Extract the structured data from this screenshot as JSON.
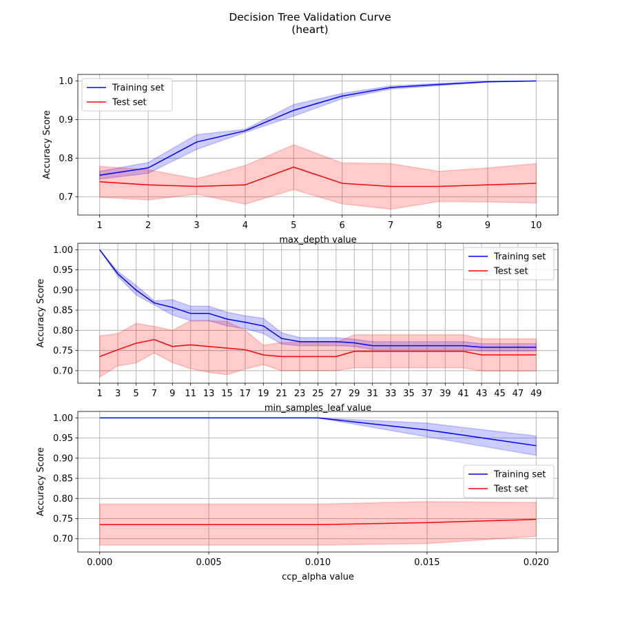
{
  "figure": {
    "title_line1": "Decision Tree Validation Curve",
    "title_line2": "(heart)"
  },
  "colors": {
    "train": "#0000ff",
    "test": "#ff0000",
    "train_band": "#0000ff",
    "test_band": "#ff0000",
    "grid": "#b0b0b0"
  },
  "chart_data": [
    {
      "type": "line",
      "xlabel": "max_depth value",
      "ylabel": "Accuracy Score",
      "x": [
        1,
        2,
        3,
        4,
        5,
        6,
        7,
        8,
        9,
        10
      ],
      "xticks": [
        1,
        2,
        3,
        4,
        5,
        6,
        7,
        8,
        9,
        10
      ],
      "xtick_labels": [
        "1",
        "2",
        "3",
        "4",
        "5",
        "6",
        "7",
        "8",
        "9",
        "10"
      ],
      "xlim": [
        0.55,
        10.45
      ],
      "yticks": [
        0.7,
        0.8,
        0.9,
        1.0
      ],
      "ytick_labels": [
        "0.7",
        "0.8",
        "0.9",
        "1.0"
      ],
      "ylim": [
        0.653,
        1.017
      ],
      "grid": true,
      "legend_placement": "upper-left",
      "series": [
        {
          "name": "Training set",
          "color_key": "train",
          "values": [
            0.756,
            0.775,
            0.842,
            0.871,
            0.924,
            0.961,
            0.983,
            0.991,
            0.998,
            1.0
          ],
          "upper": [
            0.766,
            0.789,
            0.861,
            0.875,
            0.939,
            0.968,
            0.987,
            0.994,
            0.999,
            1.0
          ],
          "lower": [
            0.746,
            0.761,
            0.823,
            0.867,
            0.909,
            0.954,
            0.979,
            0.988,
            0.997,
            1.0
          ]
        },
        {
          "name": "Test set",
          "color_key": "test",
          "values": [
            0.739,
            0.731,
            0.727,
            0.731,
            0.777,
            0.735,
            0.727,
            0.727,
            0.731,
            0.735
          ],
          "upper": [
            0.779,
            0.77,
            0.747,
            0.781,
            0.835,
            0.788,
            0.786,
            0.766,
            0.775,
            0.786
          ],
          "lower": [
            0.699,
            0.692,
            0.707,
            0.681,
            0.719,
            0.682,
            0.668,
            0.688,
            0.687,
            0.684
          ]
        }
      ]
    },
    {
      "type": "line",
      "xlabel": "min_samples_leaf value",
      "ylabel": "Accuracy Score",
      "x": [
        1,
        3,
        5,
        7,
        9,
        11,
        13,
        15,
        17,
        19,
        21,
        23,
        25,
        27,
        29,
        31,
        33,
        35,
        37,
        39,
        41,
        43,
        45,
        47,
        49
      ],
      "xticks": [
        1,
        3,
        5,
        7,
        9,
        11,
        13,
        15,
        17,
        19,
        21,
        23,
        25,
        27,
        29,
        31,
        33,
        35,
        37,
        39,
        41,
        43,
        45,
        47,
        49
      ],
      "xtick_labels": [
        "1",
        "3",
        "5",
        "7",
        "9",
        "11",
        "13",
        "15",
        "17",
        "19",
        "21",
        "23",
        "25",
        "27",
        "29",
        "31",
        "33",
        "35",
        "37",
        "39",
        "41",
        "43",
        "45",
        "47",
        "49"
      ],
      "xlim": [
        -1.4,
        51.4
      ],
      "yticks": [
        0.7,
        0.75,
        0.8,
        0.85,
        0.9,
        0.95,
        1.0
      ],
      "ytick_labels": [
        "0.70",
        "0.75",
        "0.80",
        "0.85",
        "0.90",
        "0.95",
        "1.00"
      ],
      "ylim": [
        0.669,
        1.016
      ],
      "grid": true,
      "legend_placement": "upper-right",
      "series": [
        {
          "name": "Training set",
          "color_key": "train",
          "values": [
            1.0,
            0.94,
            0.9,
            0.868,
            0.857,
            0.842,
            0.842,
            0.828,
            0.82,
            0.811,
            0.78,
            0.772,
            0.772,
            0.772,
            0.769,
            0.762,
            0.762,
            0.762,
            0.762,
            0.762,
            0.762,
            0.758,
            0.758,
            0.758,
            0.758
          ],
          "upper": [
            1.0,
            0.946,
            0.912,
            0.873,
            0.876,
            0.86,
            0.86,
            0.845,
            0.836,
            0.83,
            0.794,
            0.782,
            0.782,
            0.782,
            0.778,
            0.772,
            0.772,
            0.772,
            0.772,
            0.772,
            0.772,
            0.767,
            0.767,
            0.767,
            0.767
          ],
          "lower": [
            1.0,
            0.934,
            0.888,
            0.863,
            0.838,
            0.824,
            0.824,
            0.811,
            0.804,
            0.792,
            0.766,
            0.762,
            0.762,
            0.762,
            0.76,
            0.752,
            0.752,
            0.752,
            0.752,
            0.752,
            0.752,
            0.749,
            0.749,
            0.749,
            0.749
          ]
        },
        {
          "name": "Test set",
          "color_key": "test",
          "values": [
            0.735,
            0.752,
            0.768,
            0.777,
            0.76,
            0.764,
            0.76,
            0.756,
            0.752,
            0.739,
            0.735,
            0.735,
            0.735,
            0.735,
            0.748,
            0.748,
            0.748,
            0.748,
            0.748,
            0.748,
            0.748,
            0.739,
            0.739,
            0.739,
            0.739
          ],
          "upper": [
            0.786,
            0.792,
            0.817,
            0.81,
            0.8,
            0.824,
            0.824,
            0.822,
            0.8,
            0.763,
            0.77,
            0.77,
            0.77,
            0.77,
            0.789,
            0.789,
            0.789,
            0.789,
            0.789,
            0.789,
            0.789,
            0.779,
            0.779,
            0.779,
            0.779
          ],
          "lower": [
            0.684,
            0.712,
            0.719,
            0.744,
            0.72,
            0.705,
            0.696,
            0.69,
            0.704,
            0.715,
            0.7,
            0.7,
            0.7,
            0.7,
            0.707,
            0.707,
            0.707,
            0.707,
            0.707,
            0.707,
            0.707,
            0.699,
            0.699,
            0.699,
            0.699
          ]
        }
      ]
    },
    {
      "type": "line",
      "xlabel": "ccp_alpha value",
      "ylabel": "Accuracy Score",
      "x": [
        0.0,
        0.01,
        0.015,
        0.02
      ],
      "xticks": [
        0.0,
        0.005,
        0.01,
        0.015,
        0.02
      ],
      "xtick_labels": [
        "0.000",
        "0.005",
        "0.010",
        "0.015",
        "0.020"
      ],
      "xlim": [
        -0.001,
        0.021
      ],
      "yticks": [
        0.7,
        0.75,
        0.8,
        0.85,
        0.9,
        0.95,
        1.0
      ],
      "ytick_labels": [
        "0.70",
        "0.75",
        "0.80",
        "0.85",
        "0.90",
        "0.95",
        "1.00"
      ],
      "ylim": [
        0.667,
        1.016
      ],
      "grid": true,
      "legend_placement": "center-right",
      "series": [
        {
          "name": "Training set",
          "color_key": "train",
          "values": [
            1.0,
            1.0,
            0.97,
            0.931
          ],
          "upper": [
            1.0,
            1.0,
            0.987,
            0.955
          ],
          "lower": [
            1.0,
            1.0,
            0.953,
            0.907
          ]
        },
        {
          "name": "Test set",
          "color_key": "test",
          "values": [
            0.735,
            0.735,
            0.74,
            0.748
          ],
          "upper": [
            0.786,
            0.786,
            0.792,
            0.79
          ],
          "lower": [
            0.684,
            0.684,
            0.688,
            0.706
          ]
        }
      ]
    }
  ]
}
